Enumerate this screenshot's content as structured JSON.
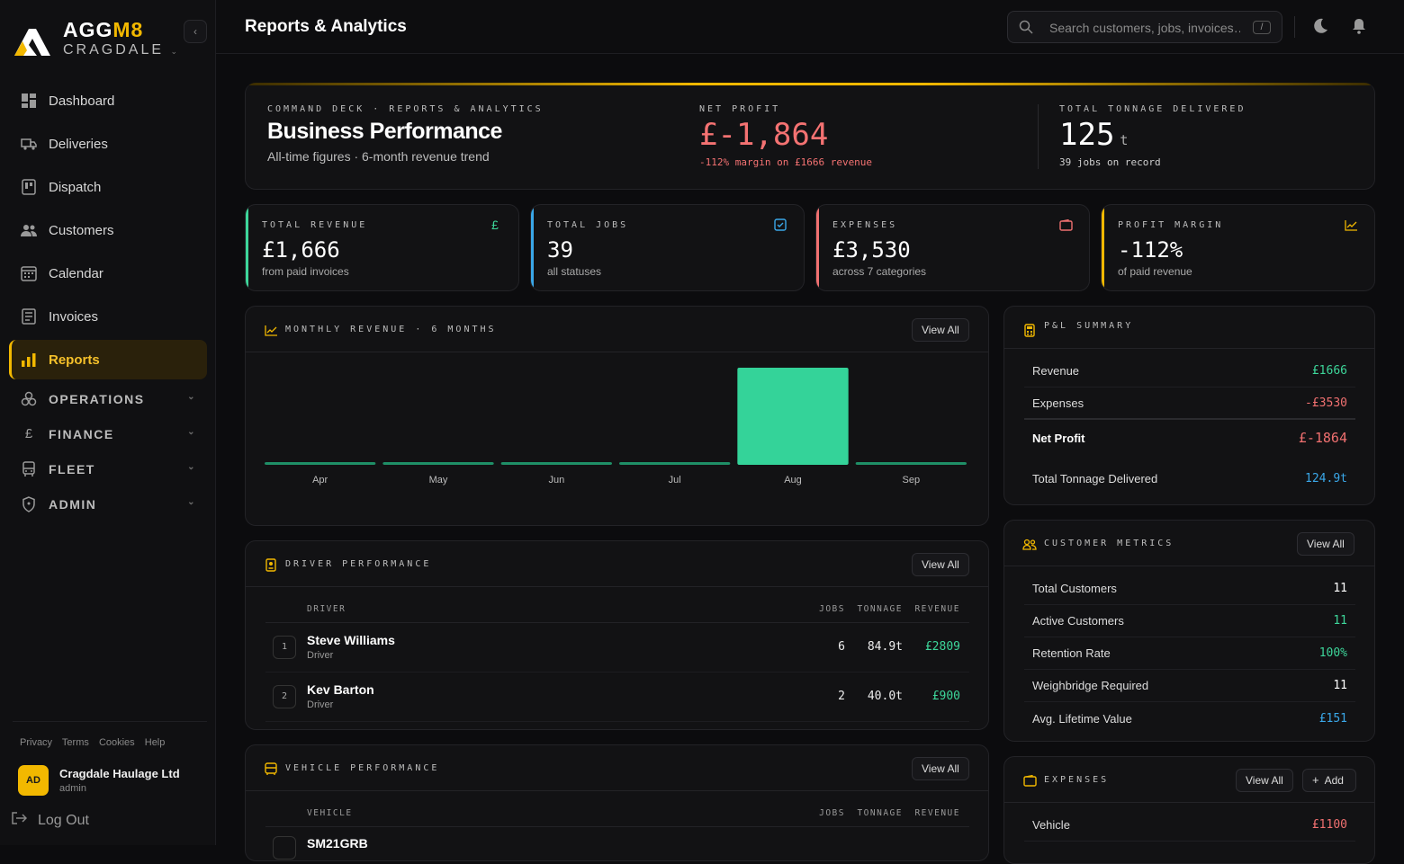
{
  "brand": {
    "name_a": "AGG",
    "name_b": "M8",
    "sub": "CRAGDALE"
  },
  "nav": {
    "items": [
      {
        "label": "Dashboard",
        "icon": "dashboard-icon"
      },
      {
        "label": "Deliveries",
        "icon": "truck-icon"
      },
      {
        "label": "Dispatch",
        "icon": "dispatch-icon"
      },
      {
        "label": "Customers",
        "icon": "users-icon"
      },
      {
        "label": "Calendar",
        "icon": "calendar-icon"
      },
      {
        "label": "Invoices",
        "icon": "invoice-icon"
      },
      {
        "label": "Reports",
        "icon": "bar-chart-icon"
      }
    ],
    "groups": [
      {
        "label": "OPERATIONS",
        "icon": "operations-icon"
      },
      {
        "label": "FINANCE",
        "icon": "pound-icon"
      },
      {
        "label": "FLEET",
        "icon": "bus-icon"
      },
      {
        "label": "ADMIN",
        "icon": "shield-icon"
      }
    ]
  },
  "footer": {
    "links": [
      "Privacy",
      "Terms",
      "Cookies",
      "Help"
    ]
  },
  "user": {
    "initials": "AD",
    "name": "Cragdale Haulage Ltd",
    "role": "admin",
    "logout": "Log Out"
  },
  "header": {
    "title": "Reports & Analytics",
    "search_placeholder": "Search customers, jobs, invoices…",
    "search_key": "/"
  },
  "hero": {
    "eyebrow": "COMMAND DECK · REPORTS & ANALYTICS",
    "title": "Business Performance",
    "subtitle": "All-time figures · 6-month revenue trend",
    "net_profit": {
      "label": "NET PROFIT",
      "value": "£-1,864",
      "note": "-112% margin on £1666 revenue"
    },
    "tonnage": {
      "label": "TOTAL TONNAGE DELIVERED",
      "value": "125",
      "unit": "t",
      "note": "39 jobs on record"
    }
  },
  "kpis": [
    {
      "label": "TOTAL REVENUE",
      "value": "£1,666",
      "sub": "from paid invoices",
      "color": "#3dd69a",
      "icon": "£"
    },
    {
      "label": "TOTAL JOBS",
      "value": "39",
      "sub": "all statuses",
      "color": "#3aa7e8",
      "icon": "check-square-icon"
    },
    {
      "label": "EXPENSES",
      "value": "£3,530",
      "sub": "across 7 categories",
      "color": "#f07070",
      "icon": "wallet-icon"
    },
    {
      "label": "PROFIT MARGIN",
      "value": "-112%",
      "sub": "of paid revenue",
      "color": "#f2b800",
      "icon": "trend-icon"
    }
  ],
  "view_all": "View All",
  "add": "Add",
  "revenue": {
    "title": "MONTHLY REVENUE · 6 MONTHS"
  },
  "chart_data": {
    "type": "bar",
    "title": "MONTHLY REVENUE · 6 MONTHS",
    "categories": [
      "Apr",
      "May",
      "Jun",
      "Jul",
      "Aug",
      "Sep"
    ],
    "values": [
      0,
      0,
      0,
      0,
      1666,
      0
    ],
    "color": "#34d399",
    "grid": false
  },
  "drivers": {
    "title": "DRIVER PERFORMANCE",
    "columns": [
      "DRIVER",
      "JOBS",
      "TONNAGE",
      "REVENUE"
    ],
    "rows": [
      {
        "rank": "1",
        "name": "Steve Williams",
        "role": "Driver",
        "jobs": "6",
        "tonnage": "84.9t",
        "revenue": "£2809"
      },
      {
        "rank": "2",
        "name": "Kev Barton",
        "role": "Driver",
        "jobs": "2",
        "tonnage": "40.0t",
        "revenue": "£900"
      }
    ]
  },
  "vehicles": {
    "title": "VEHICLE PERFORMANCE",
    "columns": [
      "VEHICLE",
      "JOBS",
      "TONNAGE",
      "REVENUE"
    ],
    "rows": [
      {
        "name": "SM21GRB"
      }
    ]
  },
  "pnl": {
    "title": "P&L SUMMARY",
    "revenue": {
      "label": "Revenue",
      "value": "£1666"
    },
    "expenses": {
      "label": "Expenses",
      "value": "-£3530"
    },
    "net": {
      "label": "Net Profit",
      "value": "£-1864"
    },
    "tonnage": {
      "label": "Total Tonnage Delivered",
      "value": "124.9t"
    }
  },
  "customers": {
    "title": "CUSTOMER METRICS",
    "rows": [
      {
        "label": "Total Customers",
        "value": "11",
        "color": "#ffffff"
      },
      {
        "label": "Active Customers",
        "value": "11",
        "color": "#3dd69a"
      },
      {
        "label": "Retention Rate",
        "value": "100%",
        "color": "#3dd69a"
      },
      {
        "label": "Weighbridge Required",
        "value": "11",
        "color": "#ffffff"
      },
      {
        "label": "Avg. Lifetime Value",
        "value": "£151",
        "color": "#3aa7e8"
      }
    ]
  },
  "expenses": {
    "title": "EXPENSES",
    "rows": [
      {
        "label": "Vehicle",
        "value": "£1100"
      }
    ]
  }
}
